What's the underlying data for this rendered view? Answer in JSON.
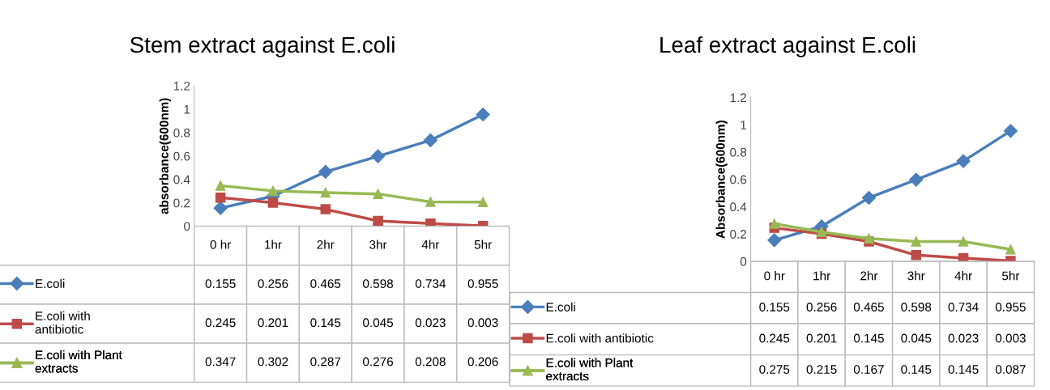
{
  "chart_data": [
    {
      "type": "line",
      "title": "Stem extract against E.coli",
      "ylabel": "absorbance(600nm)",
      "categories": [
        "0 hr",
        "1hr",
        "2hr",
        "3hr",
        "4hr",
        "5hr"
      ],
      "ylim": [
        0,
        1.2
      ],
      "yticks": [
        0,
        0.2,
        0.4,
        0.6,
        0.8,
        1,
        1.2
      ],
      "grid": false,
      "data_labels": true,
      "legend": "bottom left",
      "series": [
        {
          "name": "E.coli",
          "color": "#4a7ebb",
          "marker": "diamond",
          "values": [
            0.155,
            0.256,
            0.465,
            0.598,
            0.734,
            0.955
          ]
        },
        {
          "name": "E.coli with\nantibiotic",
          "color": "#be4b48",
          "marker": "square",
          "values": [
            0.245,
            0.201,
            0.145,
            0.045,
            0.023,
            0.003
          ]
        },
        {
          "name": "E.coli with Plant\nextracts",
          "color": "#98b954",
          "marker": "triangle",
          "values": [
            0.347,
            0.302,
            0.287,
            0.276,
            0.208,
            0.206
          ]
        }
      ]
    },
    {
      "type": "line",
      "title": "Leaf extract against E.coli",
      "ylabel": "Absorbance(600nm)",
      "categories": [
        "0 hr",
        "1hr",
        "2hr",
        "3hr",
        "4hr",
        "5hr"
      ],
      "ylim": [
        0,
        1.2
      ],
      "yticks": [
        0,
        0.2,
        0.4,
        0.6,
        0.8,
        1,
        1.2
      ],
      "grid": false,
      "data_labels": true,
      "legend": "bottom left",
      "series": [
        {
          "name": "E.coli",
          "color": "#4a7ebb",
          "marker": "diamond",
          "values": [
            0.155,
            0.256,
            0.465,
            0.598,
            0.734,
            0.955
          ]
        },
        {
          "name": "E.coli with antibiotic",
          "color": "#be4b48",
          "marker": "square",
          "values": [
            0.245,
            0.201,
            0.145,
            0.045,
            0.023,
            0.003
          ]
        },
        {
          "name": "E.coli with Plant\nextracts",
          "color": "#98b954",
          "marker": "triangle",
          "values": [
            0.275,
            0.215,
            0.167,
            0.145,
            0.145,
            0.087
          ]
        }
      ]
    }
  ]
}
